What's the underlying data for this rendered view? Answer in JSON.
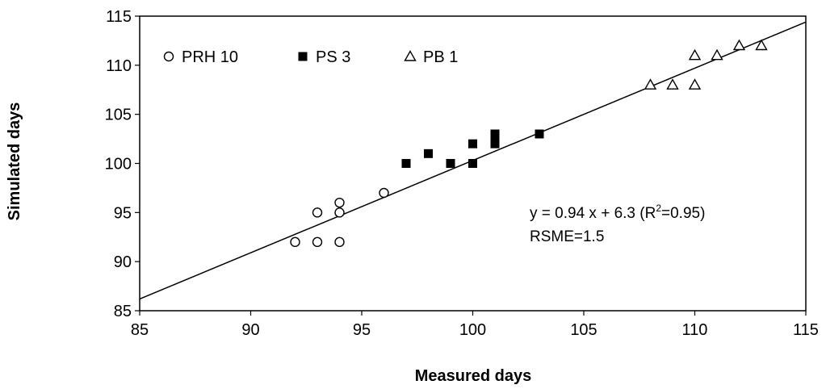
{
  "chart_data": {
    "type": "scatter",
    "title": "",
    "xlabel": "Measured days",
    "ylabel": "Simulated days",
    "xlim": [
      85,
      115
    ],
    "ylim": [
      85,
      115
    ],
    "xticks": [
      "85",
      "90",
      "95",
      "100",
      "105",
      "110",
      "115"
    ],
    "yticks": [
      "85",
      "90",
      "95",
      "100",
      "105",
      "110",
      "115"
    ],
    "grid": false,
    "legend_position": "top-left",
    "series": [
      {
        "name": "PRH 10",
        "marker": "open-circle",
        "points": [
          {
            "x": 92,
            "y": 92
          },
          {
            "x": 93,
            "y": 95
          },
          {
            "x": 93,
            "y": 92
          },
          {
            "x": 94,
            "y": 96
          },
          {
            "x": 94,
            "y": 95
          },
          {
            "x": 94,
            "y": 92
          },
          {
            "x": 96,
            "y": 97
          }
        ]
      },
      {
        "name": "PS 3",
        "marker": "filled-square",
        "points": [
          {
            "x": 97,
            "y": 100
          },
          {
            "x": 98,
            "y": 101
          },
          {
            "x": 99,
            "y": 100
          },
          {
            "x": 100,
            "y": 102
          },
          {
            "x": 100,
            "y": 100
          },
          {
            "x": 101,
            "y": 103
          },
          {
            "x": 101,
            "y": 102.5
          },
          {
            "x": 101,
            "y": 102
          },
          {
            "x": 103,
            "y": 103
          }
        ]
      },
      {
        "name": "PB 1",
        "marker": "open-triangle",
        "points": [
          {
            "x": 108,
            "y": 108
          },
          {
            "x": 109,
            "y": 108
          },
          {
            "x": 110,
            "y": 111
          },
          {
            "x": 110,
            "y": 108
          },
          {
            "x": 111,
            "y": 111
          },
          {
            "x": 112,
            "y": 112
          },
          {
            "x": 113,
            "y": 112
          }
        ]
      }
    ],
    "regression": {
      "slope": 0.94,
      "intercept": 6.3
    },
    "annotation": {
      "line1_pre": "y = 0.94 x + 6.3 (R",
      "line1_sup": "2",
      "line1_post": "=0.95)",
      "line2": "RSME=1.5"
    },
    "colors": {
      "marker": "#000000",
      "line": "#000000"
    }
  }
}
